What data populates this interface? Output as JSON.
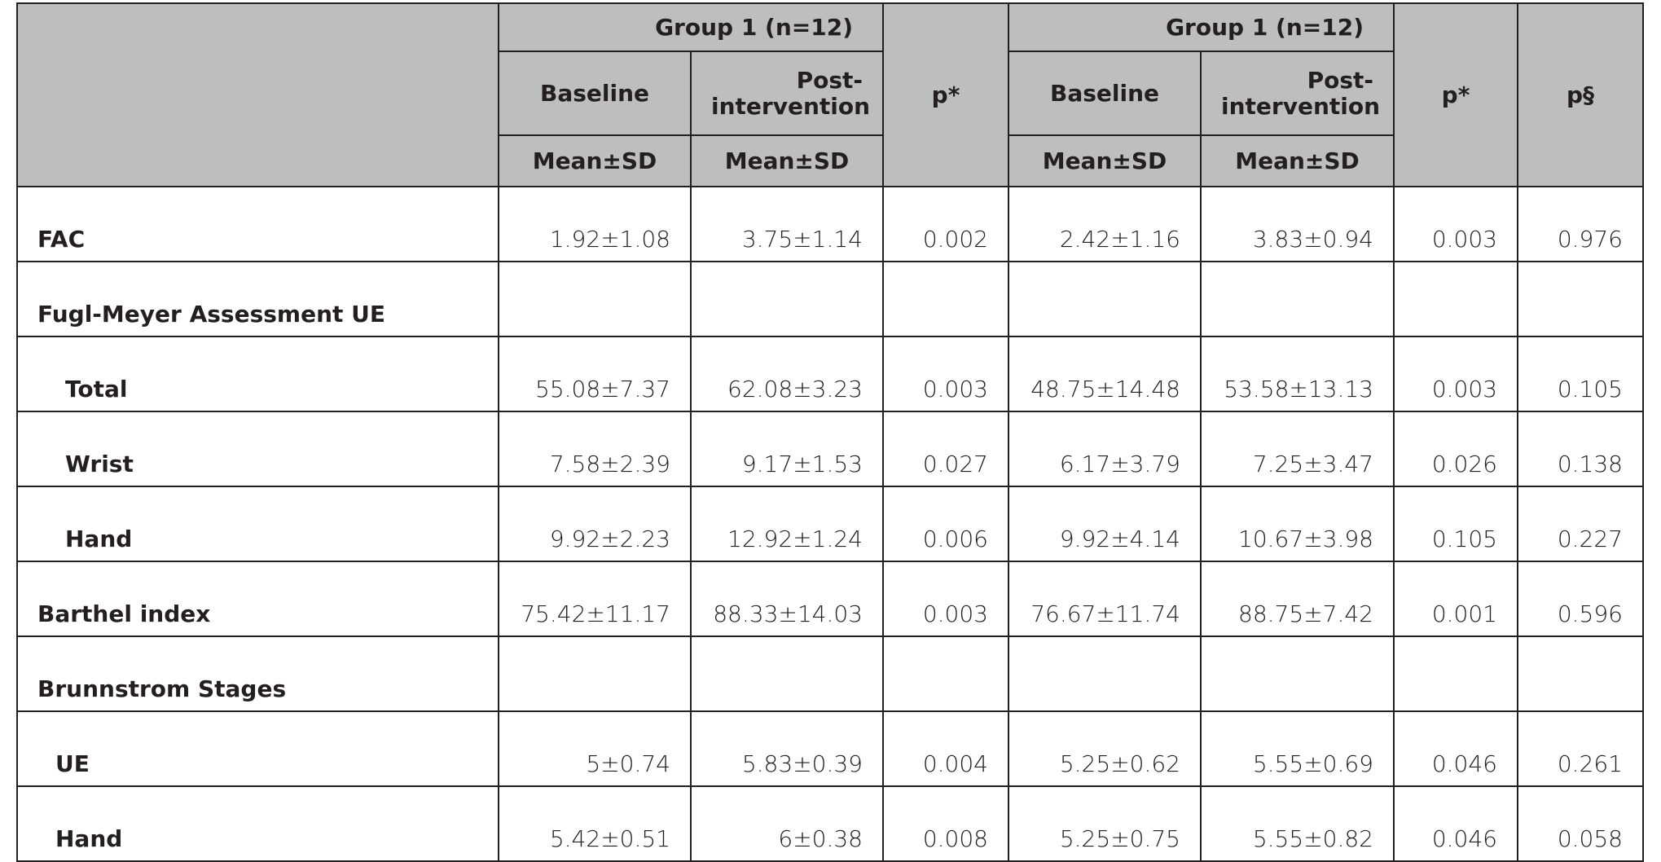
{
  "header": {
    "groups": [
      "Group 1 (n=12)",
      "Group 1 (n=12)"
    ],
    "p_columns": [
      "p*",
      "p*",
      "p§"
    ],
    "subheaders": [
      "Baseline",
      "Post-intervention",
      "Baseline",
      "Post-intervention"
    ],
    "stat_labels": [
      "Mean±SD",
      "Mean±SD",
      "Mean±SD",
      "Mean±SD"
    ]
  },
  "table": {
    "rows": [
      [
        "FAC",
        "1.92±1.08",
        "3.75±1.14",
        "0.002",
        "2.42±1.16",
        "3.83±0.94",
        "0.003",
        "0.976"
      ],
      [
        "Fugl-Meyer Assessment UE",
        "",
        "",
        "",
        "",
        "",
        "",
        ""
      ],
      [
        "Total",
        "55.08±7.37",
        "62.08±3.23",
        "0.003",
        "48.75±14.48",
        "53.58±13.13",
        "0.003",
        "0.105"
      ],
      [
        "Wrist",
        "7.58±2.39",
        "9.17±1.53",
        "0.027",
        "6.17±3.79",
        "7.25±3.47",
        "0.026",
        "0.138"
      ],
      [
        "Hand",
        "9.92±2.23",
        "12.92±1.24",
        "0.006",
        "9.92±4.14",
        "10.67±3.98",
        "0.105",
        "0.227"
      ],
      [
        "Barthel index",
        "75.42±11.17",
        "88.33±14.03",
        "0.003",
        "76.67±11.74",
        "88.75±7.42",
        "0.001",
        "0.596"
      ],
      [
        "Brunnstrom Stages",
        "",
        "",
        "",
        "",
        "",
        "",
        ""
      ],
      [
        "UE",
        "5±0.74",
        "5.83±0.39",
        "0.004",
        "5.25±0.62",
        "5.55±0.69",
        "0.046",
        "0.261"
      ],
      [
        "Hand",
        "5.42±0.51",
        "6±0.38",
        "0.008",
        "5.25±0.75",
        "5.55±0.82",
        "0.046",
        "0.058"
      ]
    ]
  }
}
